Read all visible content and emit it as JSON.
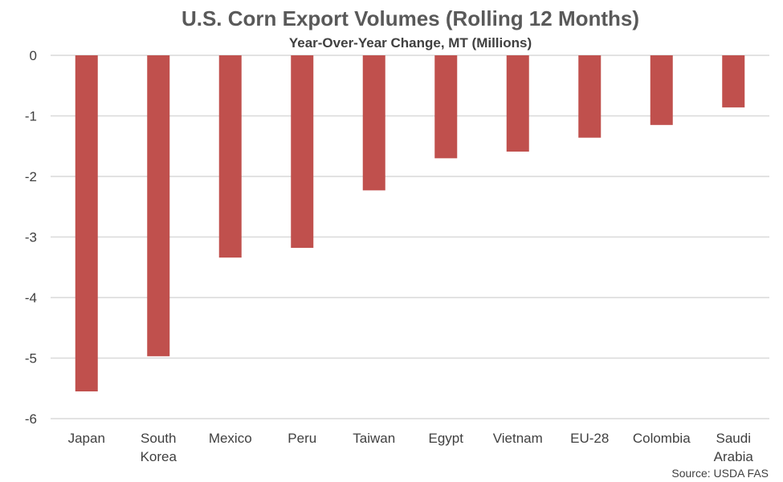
{
  "chart_data": {
    "type": "bar",
    "title": "U.S. Corn Export Volumes (Rolling 12 Months)",
    "subtitle": "Year-Over-Year Change, MT (Millions)",
    "categories": [
      [
        "Japan"
      ],
      [
        "South",
        "Korea"
      ],
      [
        "Mexico"
      ],
      [
        "Peru"
      ],
      [
        "Taiwan"
      ],
      [
        "Egypt"
      ],
      [
        "Vietnam"
      ],
      [
        "EU-28"
      ],
      [
        "Colombia"
      ],
      [
        "Saudi",
        "Arabia"
      ]
    ],
    "values": [
      -5.55,
      -4.97,
      -3.34,
      -3.18,
      -2.23,
      -1.7,
      -1.59,
      -1.36,
      -1.15,
      -0.86
    ],
    "ylim": [
      -6,
      0
    ],
    "yticks": [
      0,
      -1,
      -2,
      -3,
      -4,
      -5,
      -6
    ],
    "grid": true,
    "legend": "none",
    "bar_color": "#c0504d",
    "source": "Source: USDA FAS",
    "xlabel": "",
    "ylabel": ""
  }
}
